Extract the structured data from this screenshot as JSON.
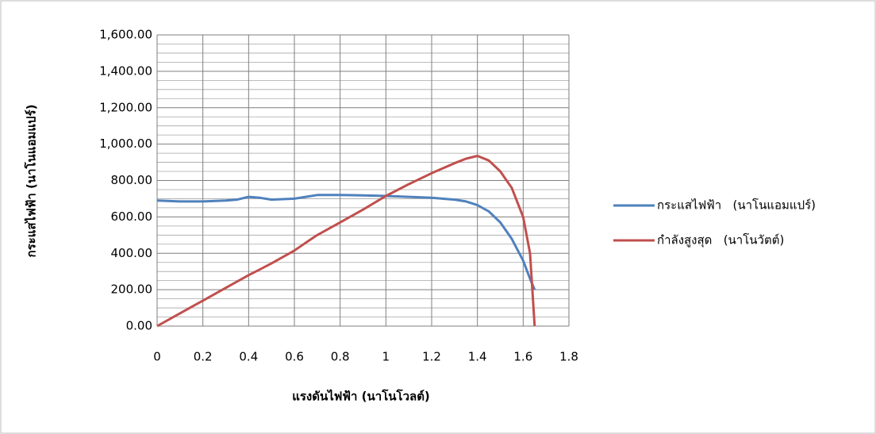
{
  "chart_data": {
    "type": "line",
    "x_label": "แรงดันไฟฟ้า (นาโนโวลต์)",
    "y_label": "กระแสไฟฟ้า (นาโนแอมแปร์)",
    "x": [
      0,
      0.1,
      0.2,
      0.3,
      0.35,
      0.4,
      0.45,
      0.5,
      0.6,
      0.65,
      0.7,
      0.8,
      0.9,
      1.0,
      1.1,
      1.2,
      1.3,
      1.35,
      1.4,
      1.45,
      1.5,
      1.55,
      1.6,
      1.63,
      1.65
    ],
    "series": [
      {
        "name": "กระแสไฟฟ้า   (นาโนแอมแปร์)",
        "color": "#4f81bd",
        "values": [
          690,
          685,
          685,
          690,
          695,
          710,
          705,
          695,
          700,
          710,
          720,
          720,
          718,
          715,
          710,
          705,
          695,
          685,
          665,
          630,
          570,
          480,
          360,
          260,
          200
        ]
      },
      {
        "name": "กำลังสูงสุด   (นาโนวัตต์)",
        "color": "#c0504d",
        "values": [
          0,
          70,
          140,
          210,
          245,
          280,
          312,
          345,
          415,
          458,
          500,
          570,
          640,
          715,
          780,
          840,
          895,
          920,
          935,
          910,
          850,
          760,
          600,
          400,
          0
        ]
      }
    ],
    "xlim": [
      0,
      1.8
    ],
    "xticks": [
      0,
      0.2,
      0.4,
      0.6,
      0.8,
      1,
      1.2,
      1.4,
      1.6,
      1.8
    ],
    "ylim": [
      0,
      1600
    ],
    "yticks": [
      {
        "value": 0,
        "label": "0.00"
      },
      {
        "value": 200,
        "label": "200.00"
      },
      {
        "value": 400,
        "label": "400.00"
      },
      {
        "value": 600,
        "label": "600.00"
      },
      {
        "value": 800,
        "label": "800.00"
      },
      {
        "value": 1000,
        "label": "1,000.00"
      },
      {
        "value": 1200,
        "label": "1,200.00"
      },
      {
        "value": 1400,
        "label": "1,400.00"
      },
      {
        "value": 1600,
        "label": "1,600.00"
      }
    ],
    "grid": true,
    "minor_grid": true,
    "legend": "right"
  }
}
